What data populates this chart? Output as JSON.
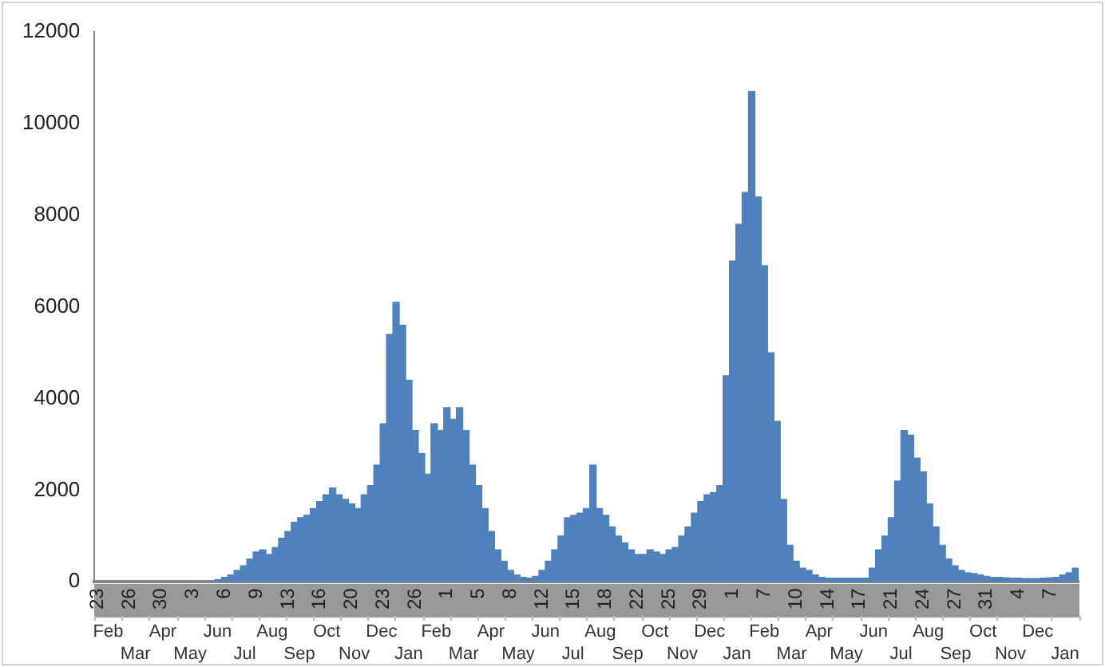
{
  "chart_data": {
    "type": "bar",
    "color": "#4f81bd",
    "categories": [
      "23",
      null,
      null,
      null,
      null,
      "26",
      null,
      null,
      null,
      null,
      "30",
      null,
      null,
      null,
      null,
      "3",
      null,
      null,
      null,
      null,
      "6",
      null,
      null,
      null,
      null,
      "9",
      null,
      null,
      null,
      null,
      "13",
      null,
      null,
      null,
      null,
      "16",
      null,
      null,
      null,
      null,
      "20",
      null,
      null,
      null,
      null,
      "23",
      null,
      null,
      null,
      null,
      "26",
      null,
      null,
      null,
      null,
      "1",
      null,
      null,
      null,
      null,
      "5",
      null,
      null,
      null,
      null,
      "8",
      null,
      null,
      null,
      null,
      "12",
      null,
      null,
      null,
      null,
      "15",
      null,
      null,
      null,
      null,
      "18",
      null,
      null,
      null,
      null,
      "22",
      null,
      null,
      null,
      null,
      "25",
      null,
      null,
      null,
      null,
      "29",
      null,
      null,
      null,
      null,
      "1",
      null,
      null,
      null,
      null,
      "7",
      null,
      null,
      null,
      null,
      "10",
      null,
      null,
      null,
      null,
      "14",
      null,
      null,
      null,
      null,
      "17",
      null,
      null,
      null,
      null,
      "21",
      null,
      null,
      null,
      null,
      "24",
      null,
      null,
      null,
      null,
      "27",
      null,
      null,
      null,
      null,
      "31",
      null,
      null,
      null,
      null,
      "4",
      null,
      null,
      null,
      null,
      "7",
      null,
      null,
      null,
      null
    ],
    "values": [
      0,
      0,
      0,
      0,
      0,
      0,
      0,
      0,
      0,
      0,
      0,
      0,
      0,
      0,
      0,
      0,
      0,
      0,
      0,
      50,
      100,
      150,
      250,
      350,
      500,
      650,
      700,
      600,
      750,
      950,
      1100,
      1300,
      1400,
      1450,
      1600,
      1750,
      1900,
      2050,
      1900,
      1800,
      1700,
      1600,
      1900,
      2100,
      2550,
      3450,
      5400,
      6100,
      5600,
      4400,
      3300,
      2800,
      2350,
      3450,
      3300,
      3800,
      3550,
      3800,
      3300,
      2550,
      2100,
      1600,
      1100,
      700,
      450,
      250,
      150,
      100,
      80,
      120,
      250,
      450,
      700,
      1000,
      1400,
      1450,
      1500,
      1600,
      2550,
      1600,
      1450,
      1200,
      1000,
      850,
      700,
      600,
      600,
      700,
      650,
      600,
      700,
      750,
      1000,
      1200,
      1500,
      1750,
      1900,
      1950,
      2100,
      4500,
      7000,
      7800,
      8500,
      10700,
      8400,
      6900,
      5000,
      3500,
      1800,
      800,
      450,
      300,
      250,
      150,
      100,
      80,
      80,
      80,
      80,
      80,
      80,
      80,
      300,
      700,
      1000,
      1400,
      2200,
      3300,
      3200,
      2700,
      2400,
      1700,
      1200,
      800,
      500,
      350,
      250,
      200,
      180,
      150,
      120,
      100,
      100,
      90,
      80,
      80,
      70,
      70,
      70,
      80,
      90,
      100,
      150,
      200,
      300
    ],
    "ylim": [
      0,
      12000
    ],
    "yticks": [
      0,
      2000,
      4000,
      6000,
      8000,
      10000,
      12000
    ],
    "grid": false,
    "legend": false,
    "annotations": [
      "Feb",
      "Mar",
      "Apr",
      "May",
      "Jun",
      "Jul",
      "Aug",
      "Sep",
      "Oct",
      "Nov",
      "Dec",
      "Jan",
      "Feb",
      "Mar",
      "Apr",
      "May",
      "Jun",
      "Jul",
      "Aug",
      "Sep",
      "Oct",
      "Nov",
      "Dec",
      "Jan",
      "Feb",
      "Mar",
      "Apr",
      "May",
      "Jun",
      "Jul",
      "Aug",
      "Sep",
      "Oct",
      "Nov",
      "Dec",
      "Jan"
    ]
  }
}
